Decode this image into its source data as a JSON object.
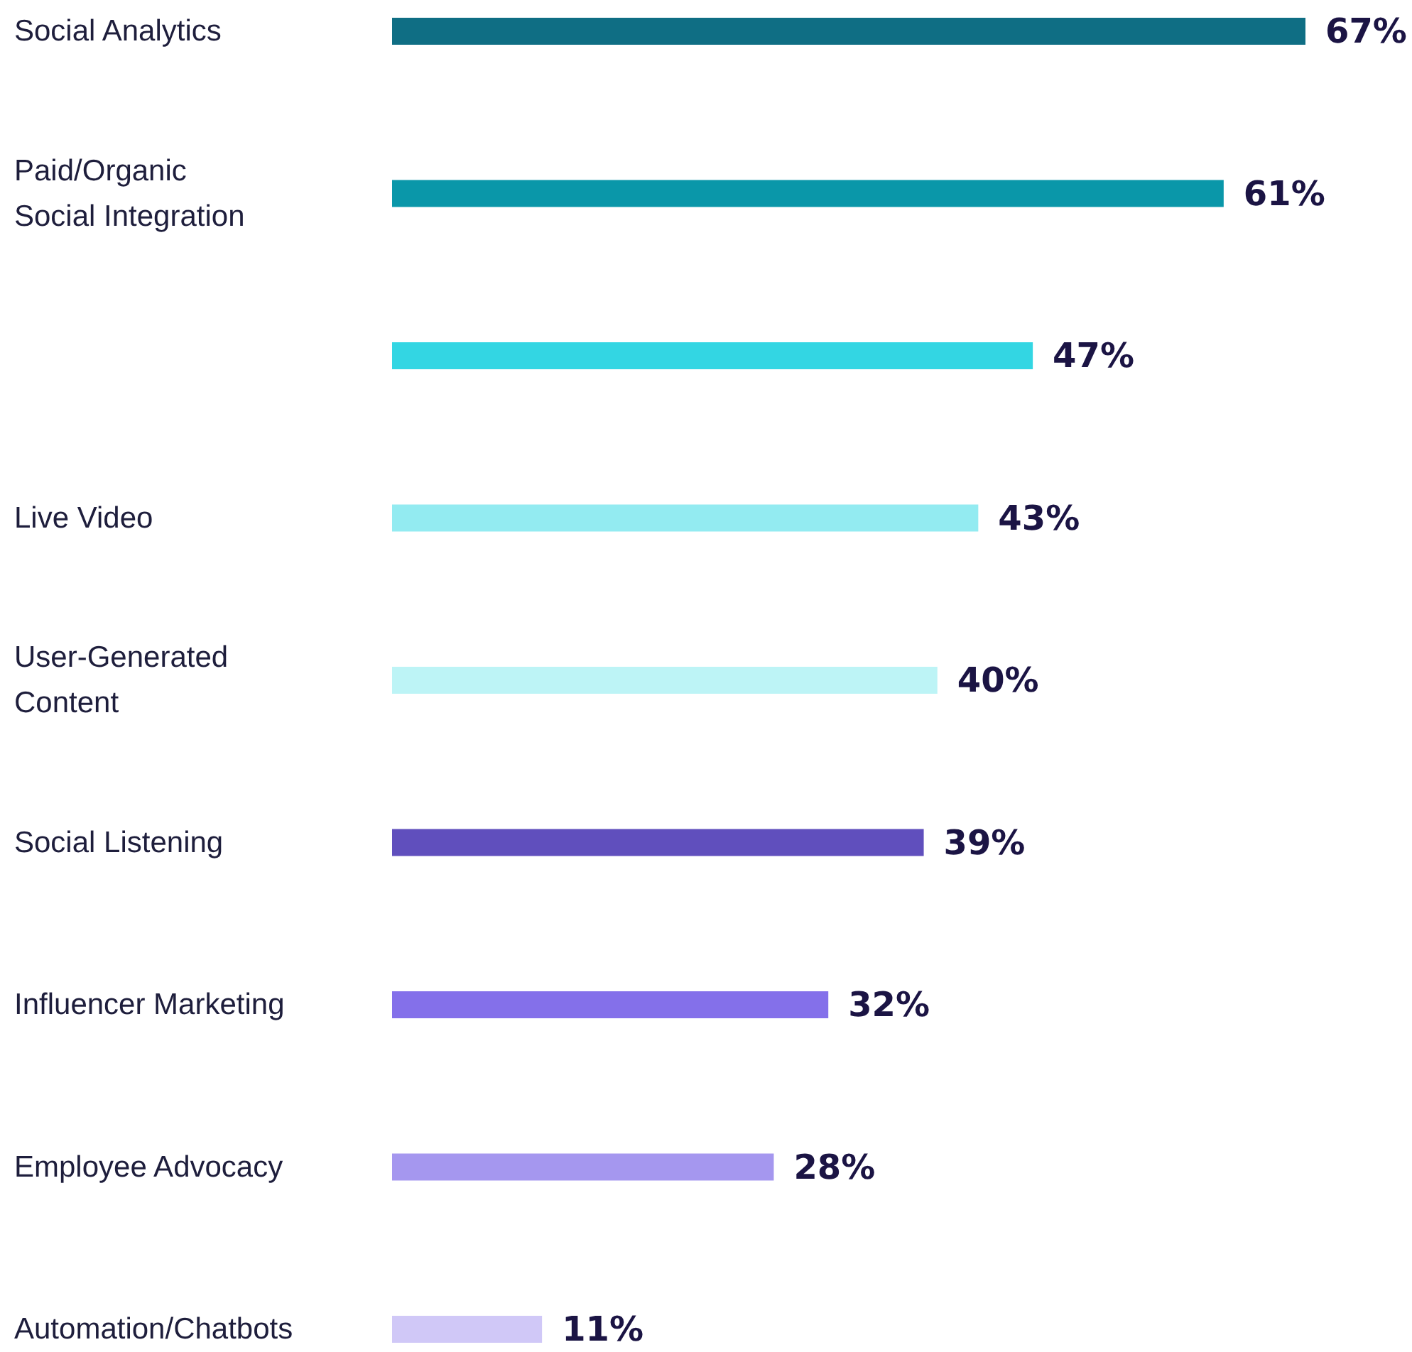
{
  "chart_data": {
    "type": "bar",
    "orientation": "horizontal",
    "categories": [
      "Social Analytics",
      "Paid/Organic\nSocial Integration",
      null,
      "Live Video",
      "User-Generated\nContent",
      "Social Listening",
      "Influencer Marketing",
      "Employee Advocacy",
      "Automation/Chatbots"
    ],
    "values": [
      67,
      61,
      47,
      43,
      40,
      39,
      32,
      28,
      11
    ],
    "value_labels": [
      "67%",
      "61%",
      "47%",
      "43%",
      "40%",
      "39%",
      "32%",
      "28%",
      "11%"
    ],
    "colors": [
      "#0f6e84",
      "#0a97a9",
      "#33d6e3",
      "#93ebf1",
      "#bdf4f6",
      "#604fbd",
      "#8470ea",
      "#a597ef",
      "#d0c8f7"
    ]
  }
}
